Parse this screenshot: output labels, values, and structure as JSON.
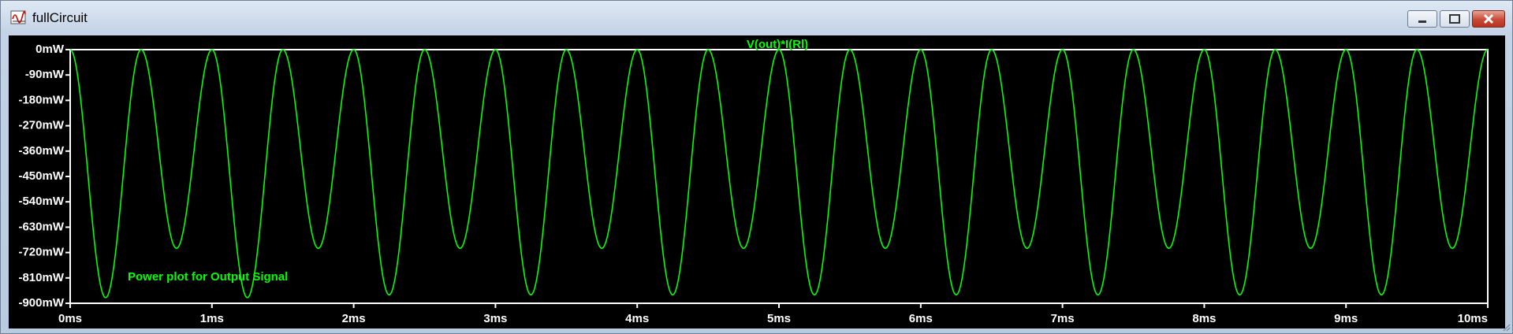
{
  "window": {
    "title": "fullCircuit"
  },
  "plot": {
    "trace_label": "V(out)*I(Rl)",
    "annotation": "Power plot for Output Signal",
    "trace_color": "#00ff00",
    "background_color": "#000000",
    "axis_color": "#ffffff"
  },
  "chart_data": {
    "type": "line",
    "title": "V(out)*I(Rl)",
    "xlabel": "",
    "ylabel": "",
    "xlim": [
      0,
      10
    ],
    "ylim": [
      -900,
      0
    ],
    "x_ticks": [
      "0ms",
      "1ms",
      "2ms",
      "3ms",
      "4ms",
      "5ms",
      "6ms",
      "7ms",
      "8ms",
      "9ms",
      "10ms"
    ],
    "y_ticks": [
      "0mW",
      "-90mW",
      "-180mW",
      "-270mW",
      "-360mW",
      "-450mW",
      "-540mW",
      "-630mW",
      "-720mW",
      "-810mW",
      "-900mW"
    ],
    "grid": false,
    "series": [
      {
        "name": "V(out)*I(Rl)",
        "x_unit": "ms",
        "y_unit": "mW",
        "period_ms": 1.0,
        "min_values_mW": [
          -880,
          -705
        ],
        "min_times_ms": [
          0.25,
          0.75
        ],
        "max_value_mW": 0,
        "description_points": {
          "x": [
            0,
            0.25,
            0.5,
            0.75,
            1.0,
            1.25,
            1.5,
            1.75,
            2.0,
            2.25,
            2.5,
            2.75,
            3.0,
            3.25,
            3.5,
            3.75,
            4.0,
            4.25,
            4.5,
            4.75,
            5.0,
            5.25,
            5.5,
            5.75,
            6.0,
            6.25,
            6.5,
            6.75,
            7.0,
            7.25,
            7.5,
            7.75,
            8.0,
            8.25,
            8.5,
            8.75,
            9.0,
            9.25,
            9.5,
            9.75,
            10.0
          ],
          "y": [
            0,
            -880,
            0,
            -705,
            0,
            -880,
            0,
            -705,
            0,
            -870,
            0,
            -705,
            0,
            -870,
            0,
            -705,
            0,
            -870,
            0,
            -705,
            0,
            -870,
            0,
            -705,
            0,
            -870,
            0,
            -705,
            0,
            -870,
            0,
            -705,
            0,
            -870,
            0,
            -705,
            0,
            -870,
            0,
            -705,
            0
          ]
        }
      }
    ]
  }
}
